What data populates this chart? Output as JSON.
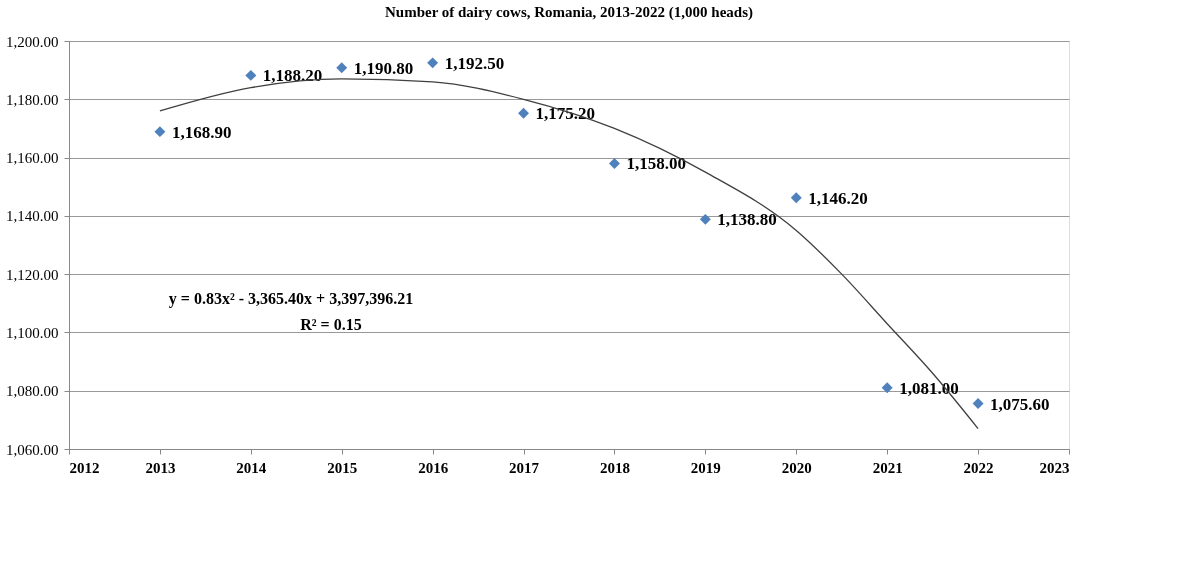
{
  "chart_data": {
    "type": "scatter",
    "title": "Number of dairy cows, Romania, 2013-2022  (1,000 heads)",
    "x": [
      2013,
      2014,
      2015,
      2016,
      2017,
      2018,
      2019,
      2020,
      2021,
      2022
    ],
    "series": [
      {
        "color": "#4f81bd",
        "marker": "diamond",
        "values": [
          1168.9,
          1188.2,
          1190.8,
          1192.5,
          1175.2,
          1158.0,
          1138.8,
          1146.2,
          1081.0,
          1075.6
        ],
        "value_labels": [
          "1,168.90",
          "1,188.20",
          "1,190.80",
          "1,192.50",
          "1,175.20",
          "1,158.00",
          "1,138.80",
          "1,146.20",
          "1,081.00",
          "1,075.60"
        ]
      },
      {
        "type": "line",
        "color": "#404040",
        "marker": "none",
        "line_style": "solid",
        "x": [
          2013,
          2014,
          2015,
          2016,
          2017,
          2018,
          2019,
          2020,
          2020.5,
          2021,
          2021.5,
          2022
        ],
        "values": [
          1176,
          1184,
          1187,
          1186,
          1180,
          1170,
          1155,
          1135,
          1120,
          1103,
          1086,
          1067
        ]
      }
    ],
    "xlim": [
      2012,
      2023
    ],
    "xticks": [
      2012,
      2013,
      2014,
      2015,
      2016,
      2017,
      2018,
      2019,
      2020,
      2021,
      2022,
      2023
    ],
    "ylim": [
      1060,
      1200
    ],
    "yticks": [
      {
        "value": 1060,
        "label": "1,060.00"
      },
      {
        "value": 1080,
        "label": "1,080.00"
      },
      {
        "value": 1100,
        "label": "1,100.00"
      },
      {
        "value": 1120,
        "label": "1,120.00"
      },
      {
        "value": 1140,
        "label": "1,140.00"
      },
      {
        "value": 1160,
        "label": "1,160.00"
      },
      {
        "value": 1180,
        "label": "1,180.00"
      },
      {
        "value": 1200,
        "label": "1,200.00"
      }
    ],
    "grid": "y",
    "annotations": [
      "y = 0.83x² - 3,365.40x + 3,397,396.21",
      "R² = 0.15"
    ]
  }
}
